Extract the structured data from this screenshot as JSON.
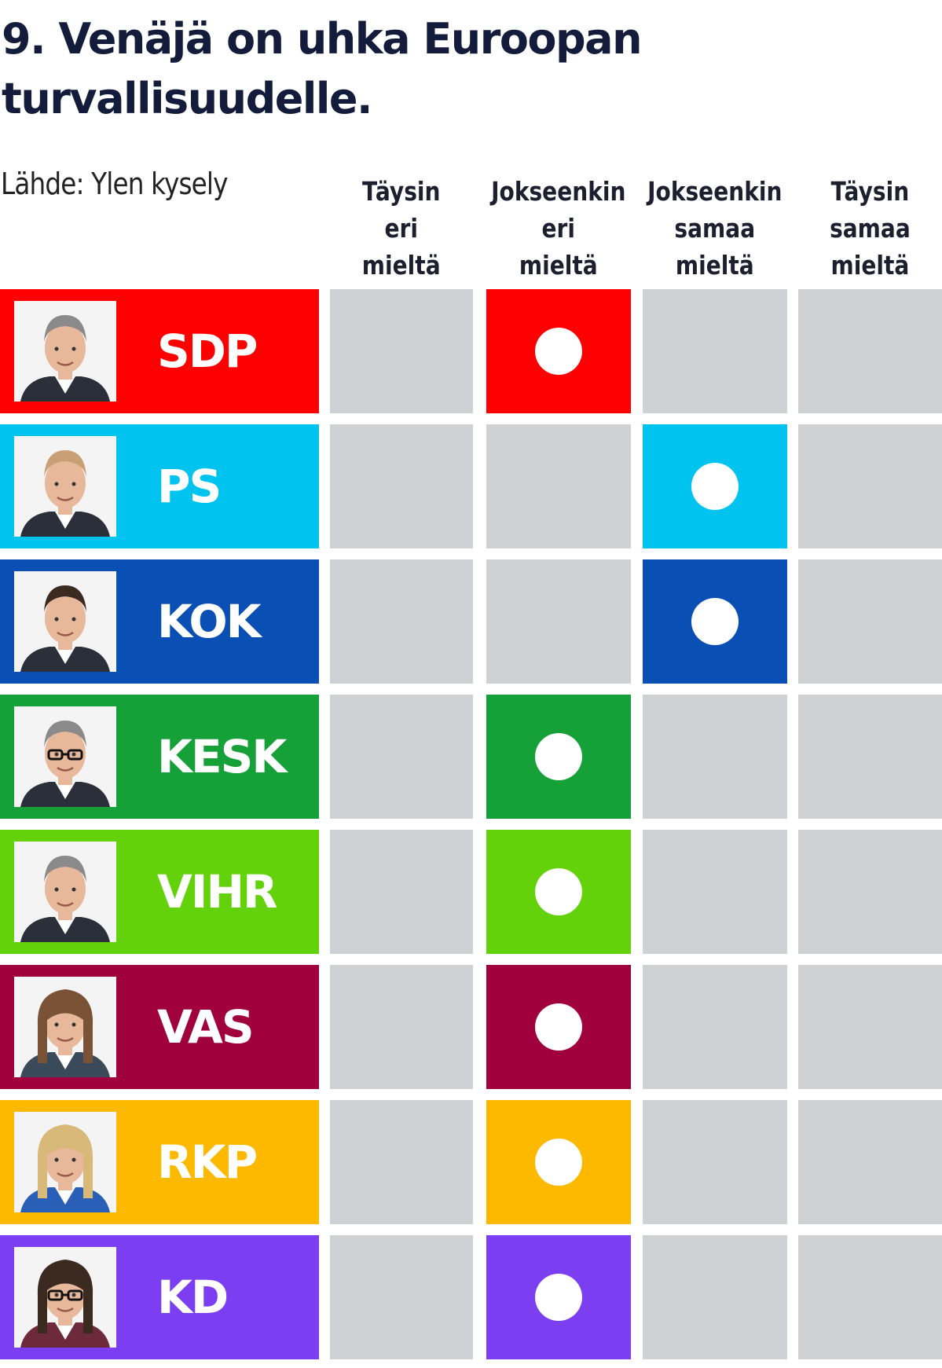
{
  "title": "9. Venäjä on uhka Euroopan turvallisuudelle.",
  "source": "Lähde: Ylen kysely",
  "chart_data": {
    "type": "table",
    "columns": [
      "Täysin\neri\nmieltä",
      "Jokseenkin\neri\nmieltä",
      "Jokseenkin\nsamaa\nmieltä",
      "Täysin\nsamaa\nmieltä"
    ],
    "empty_cell_color": "#cfd1d4",
    "rows": [
      {
        "party": "SDP",
        "color": "#ff0000",
        "answer_index": 1,
        "photo": "portrait-man-grey-hair"
      },
      {
        "party": "PS",
        "color": "#00c3f0",
        "answer_index": 2,
        "photo": "portrait-man-short-hair"
      },
      {
        "party": "KOK",
        "color": "#0a50b4",
        "answer_index": 2,
        "photo": "portrait-man-dark-hair"
      },
      {
        "party": "KESK",
        "color": "#15a038",
        "answer_index": 1,
        "photo": "portrait-man-glasses"
      },
      {
        "party": "VIHR",
        "color": "#64d20a",
        "answer_index": 1,
        "photo": "portrait-man-grey-hair"
      },
      {
        "party": "VAS",
        "color": "#a0003c",
        "answer_index": 1,
        "photo": "portrait-woman-brown-hair"
      },
      {
        "party": "RKP",
        "color": "#fcb900",
        "answer_index": 1,
        "photo": "portrait-woman-blonde-hair"
      },
      {
        "party": "KD",
        "color": "#7b3ef0",
        "answer_index": 1,
        "photo": "portrait-woman-dark-hair-glasses"
      }
    ]
  }
}
